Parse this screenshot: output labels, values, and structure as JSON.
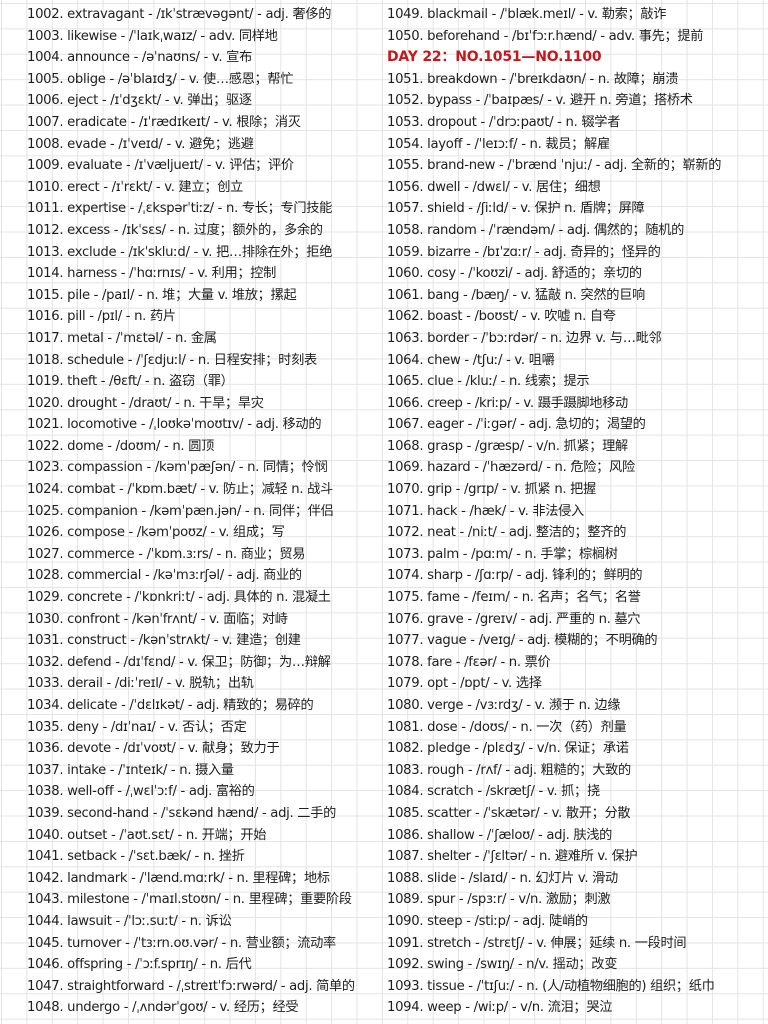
{
  "colors": {
    "header": "#c8161d",
    "text": "#1e1e1e",
    "grid": "#e4e4e4"
  },
  "left_column": [
    "1002. extravagant - /ɪkˈstrævəgənt/ - adj. 奢侈的",
    "1003. likewise - /ˈlaɪkˌwaɪz/ - adv. 同样地",
    "1004. announce - /əˈnaʊns/ - v. 宣布",
    "1005. oblige - /əˈblaɪdʒ/ - v. 使…感恩；帮忙",
    "1006. eject - /ɪˈdʒɛkt/ - v. 弹出；驱逐",
    "1007. eradicate - /ɪˈrædɪkeɪt/ - v. 根除；消灭",
    "1008. evade - /ɪˈveɪd/ - v. 避免；逃避",
    "1009. evaluate - /ɪˈvæljueɪt/ - v. 评估；评价",
    "1010. erect - /ɪˈrɛkt/ - v. 建立；创立",
    "1011. expertise - /ˌɛkspərˈtiːz/ - n. 专长；专门技能",
    "1012. excess - /ɪkˈsɛs/ - n. 过度；额外的，多余的",
    "1013. exclude - /ɪkˈskluːd/ - v. 把…排除在外；拒绝",
    "1014. harness - /ˈhɑːrnɪs/ - v. 利用；控制",
    "1015. pile - /paɪl/ - n. 堆；大量 v. 堆放；摞起",
    "1016. pill - /pɪl/ - n. 药片",
    "1017. metal - /ˈmɛtəl/ - n. 金属",
    "1018. schedule - /ˈʃɛdjuːl/ - n. 日程安排；时刻表",
    "1019. theft - /θɛft/ - n. 盗窃（罪）",
    "1020. drought - /draʊt/ - n. 干旱；旱灾",
    "1021. locomotive - /ˌloʊkəˈmoʊtɪv/ - adj. 移动的",
    "1022. dome - /doʊm/ - n. 圆顶",
    "1023. compassion - /kəmˈpæʃən/ - n. 同情；怜悯",
    "1024. combat - /ˈkɒm.bæt/ - v. 防止；减轻 n. 战斗",
    "1025. companion - /kəmˈpæn.jən/ - n. 同伴；伴侣",
    "1026. compose - /kəmˈpoʊz/ - v. 组成；写",
    "1027. commerce - /ˈkɒm.ɜːrs/ - n. 商业；贸易",
    "1028. commercial - /kəˈmɜːrʃəl/ - adj. 商业的",
    "1029. concrete - /ˈkɒnkriːt/ - adj. 具体的 n. 混凝土",
    "1030. confront - /kənˈfrʌnt/ - v. 面临；对峙",
    "1031. construct - /kənˈstrʌkt/ - v. 建造；创建",
    "1032. defend - /dɪˈfɛnd/ - v. 保卫；防御；为…辩解",
    "1033. derail - /diːˈreɪl/ - v. 脱轨；出轨",
    "1034. delicate - /ˈdɛlɪkət/ - adj. 精致的；易碎的",
    "1035. deny - /dɪˈnaɪ/ - v. 否认；否定",
    "1036. devote - /dɪˈvoʊt/ - v. 献身；致力于",
    "1037. intake - /ˈɪnteɪk/ - n. 摄入量",
    "1038. well-off - /ˌwɛlˈɔːf/ - adj. 富裕的",
    "1039. second-hand - /ˈsɛkənd hænd/ - adj. 二手的",
    "1040. outset - /ˈaʊt.sɛt/ - n. 开端；开始",
    "1041. setback - /ˈsɛt.bæk/ - n. 挫折",
    "1042. landmark - /ˈlænd.mɑːrk/ - n. 里程碑；地标",
    "1043. milestone - /ˈmaɪl.stoʊn/ - n. 里程碑；重要阶段",
    "1044. lawsuit - /ˈlɔː.suːt/ - n. 诉讼",
    "1045. turnover - /ˈtɜːrn.oʊ.vər/ - n. 营业额；流动率",
    "1046. offspring - /ˈɔːf.sprɪŋ/ - n. 后代",
    "1047. straightforward - /ˌstreɪtˈfɔːrwərd/ - adj. 简单的",
    "1048. undergo - /ˌʌndərˈgoʊ/ - v. 经历；经受"
  ],
  "right_column": [
    "1049. blackmail - /ˈblæk.meɪl/ - v. 勒索；敲诈",
    "1050. beforehand - /bɪˈfɔːr.hænd/ - adv. 事先；提前",
    "DAY 22：NO.1051—NO.1100",
    "1051. breakdown - /ˈbreɪkdaʊn/ - n. 故障；崩溃",
    "1052. bypass - /ˈbaɪpæs/ - v. 避开 n. 旁道；搭桥术",
    "1053. dropout - /ˈdrɔːpaʊt/ - n. 辍学者",
    "1054. layoff - /ˈleɪɔːf/ - n. 裁员；解雇",
    "1055. brand-new - /ˈbrænd ˈnjuː/ - adj. 全新的；崭新的",
    "1056. dwell - /dwɛl/ - v. 居住；细想",
    "1057. shield - /ʃiːld/ - v. 保护 n. 盾牌；屏障",
    "1058. random - /ˈrændəm/ - adj. 偶然的；随机的",
    "1059. bizarre - /bɪˈzɑːr/ - adj. 奇异的；怪异的",
    "1060. cosy - /ˈkoʊzi/ - adj. 舒适的；亲切的",
    "1061. bang - /bæŋ/ - v. 猛敲 n. 突然的巨响",
    "1062. boast - /boʊst/ - v. 吹嘘 n. 自夸",
    "1063. border - /ˈbɔːrdər/ - n. 边界 v. 与…毗邻",
    "1064. chew - /tʃuː/ - v. 咀嚼",
    "1065. clue - /kluː/ - n. 线索；提示",
    "1066. creep - /kriːp/ - v. 蹑手蹑脚地移动",
    "1067. eager - /ˈiːgər/ - adj. 急切的；渴望的",
    "1068. grasp - /græsp/ - v/n. 抓紧；理解",
    "1069. hazard - /ˈhæzərd/ - n. 危险；风险",
    "1070. grip - /grɪp/ - v. 抓紧 n. 把握",
    "1071. hack - /hæk/ - v. 非法侵入",
    "1072. neat - /niːt/ - adj. 整洁的；整齐的",
    "1073. palm - /pɑːm/ - n. 手掌；棕榈树",
    "1074. sharp - /ʃɑːrp/ - adj. 锋利的；鲜明的",
    "1075. fame - /feɪm/ - n. 名声；名气；名誉",
    "1076. grave - /greɪv/ - adj. 严重的 n. 墓穴",
    "1077. vague - /veɪg/ - adj. 模糊的；不明确的",
    "1078. fare - /fɛər/ - n. 票价",
    "1079. opt - /ɒpt/ - v. 选择",
    "1080. verge - /vɜːrdʒ/ - v. 濒于 n. 边缘",
    "1081. dose - /doʊs/ - n. 一次（药）剂量",
    "1082. pledge - /plɛdʒ/ - v/n. 保证；承诺",
    "1083. rough - /rʌf/ - adj. 粗糙的；大致的",
    "1084. scratch - /skrætʃ/ - v. 抓；挠",
    "1085. scatter - /ˈskætər/ - v. 散开；分散",
    "1086. shallow - /ˈʃæloʊ/ - adj. 肤浅的",
    "1087. shelter - /ˈʃɛltər/ - n. 避难所 v. 保护",
    "1088. slide - /slaɪd/ - n. 幻灯片 v. 滑动",
    "1089. spur - /spɜːr/ - v/n. 激励；刺激",
    "1090. steep - /stiːp/ - adj. 陡峭的",
    "1091. stretch - /strɛtʃ/ - v. 伸展；延续 n. 一段时间",
    "1092. swing - /swɪŋ/ - n/v. 摇动；改变",
    "1093. tissue - /ˈtɪʃuː/ - n. (人/动植物细胞的) 组织；纸巾",
    "1094. weep - /wiːp/ - v/n. 流泪；哭泣"
  ]
}
